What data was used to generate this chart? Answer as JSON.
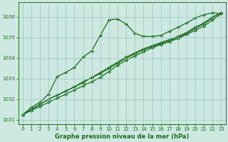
{
  "line_wavy": {
    "x": [
      0,
      1,
      2,
      3,
      4,
      5,
      6,
      7,
      8,
      9,
      10,
      11,
      12,
      13,
      14,
      15,
      16,
      17,
      18,
      19,
      20,
      21,
      22,
      23
    ],
    "y": [
      1031.25,
      1031.6,
      1031.85,
      1032.25,
      1033.1,
      1033.3,
      1033.55,
      1034.05,
      1034.35,
      1035.1,
      1035.85,
      1035.9,
      1035.65,
      1035.2,
      1035.05,
      1035.05,
      1035.1,
      1035.3,
      1035.5,
      1035.7,
      1035.95,
      1036.1,
      1036.2,
      1036.15
    ]
  },
  "line_straight1": {
    "x": [
      0,
      1,
      2,
      3,
      4,
      5,
      6,
      7,
      8,
      9,
      10,
      11,
      12,
      13,
      14,
      15,
      16,
      17,
      18,
      19,
      20,
      21,
      22,
      23
    ],
    "y": [
      1031.25,
      1031.45,
      1031.65,
      1031.85,
      1032.05,
      1032.25,
      1032.45,
      1032.65,
      1032.85,
      1033.05,
      1033.35,
      1033.65,
      1033.9,
      1034.1,
      1034.3,
      1034.5,
      1034.65,
      1034.8,
      1034.95,
      1035.15,
      1035.35,
      1035.55,
      1035.85,
      1036.15
    ]
  },
  "line_straight2": {
    "x": [
      0,
      1,
      2,
      3,
      4,
      5,
      6,
      7,
      8,
      9,
      10,
      11,
      12,
      13,
      14,
      15,
      16,
      17,
      18,
      19,
      20,
      21,
      22,
      23
    ],
    "y": [
      1031.25,
      1031.5,
      1031.75,
      1032.0,
      1032.2,
      1032.4,
      1032.6,
      1032.8,
      1033.05,
      1033.25,
      1033.5,
      1033.75,
      1034.0,
      1034.2,
      1034.4,
      1034.55,
      1034.7,
      1034.85,
      1035.0,
      1035.2,
      1035.45,
      1035.65,
      1035.95,
      1036.2
    ]
  },
  "line_straight3": {
    "x": [
      0,
      1,
      2,
      3,
      4,
      5,
      6,
      7,
      8,
      9,
      10,
      11,
      12,
      13,
      14,
      15,
      16,
      17,
      18,
      19,
      20,
      21,
      22,
      23
    ],
    "y": [
      1031.25,
      1031.5,
      1031.75,
      1032.0,
      1032.2,
      1032.4,
      1032.6,
      1032.85,
      1033.05,
      1033.3,
      1033.55,
      1033.8,
      1034.05,
      1034.25,
      1034.45,
      1034.6,
      1034.75,
      1034.9,
      1035.05,
      1035.25,
      1035.5,
      1035.7,
      1036.0,
      1036.2
    ]
  },
  "line_color": "#1a6e1a",
  "bg_color": "#cce8e0",
  "grid_color": "#9cc8c0",
  "xlabel": "Graphe pression niveau de la mer (hPa)",
  "ylim": [
    1030.8,
    1036.7
  ],
  "xlim": [
    -0.5,
    23.5
  ],
  "yticks": [
    1031,
    1032,
    1033,
    1034,
    1035,
    1036
  ],
  "xticks": [
    0,
    1,
    2,
    3,
    4,
    5,
    6,
    7,
    8,
    9,
    10,
    11,
    12,
    13,
    14,
    15,
    16,
    17,
    18,
    19,
    20,
    21,
    22,
    23
  ],
  "marker": "D",
  "markersize": 2.2,
  "linewidth": 0.9,
  "tick_fontsize": 5.0,
  "xlabel_fontsize": 6.0
}
